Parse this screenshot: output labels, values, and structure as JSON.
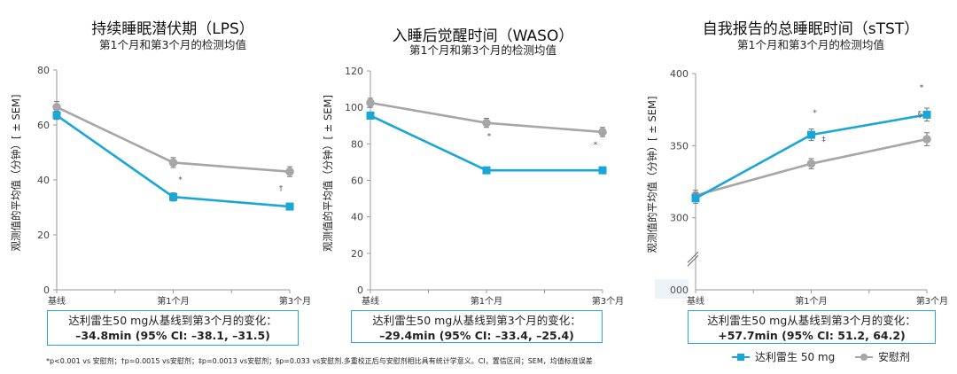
{
  "chart_data": [
    {
      "type": "line",
      "title": "持续睡眠潜伏期（LPS）",
      "subtitle": "第1个月和第3个月的检测均值",
      "ylabel": "观测值的平均值（分钟）[ ± SEM]",
      "categories": [
        "基线",
        "第1个月",
        "第3个月"
      ],
      "ylim": [
        0,
        80
      ],
      "yticks": [
        0,
        20,
        40,
        60,
        80
      ],
      "ytick_labels": [
        "0",
        "20",
        "40",
        "60",
        "80"
      ],
      "series": [
        {
          "name": "达利雷生 50 mg",
          "values": [
            63.5,
            33.8,
            30.3
          ],
          "sem": [
            1.5,
            1.5,
            1.2
          ]
        },
        {
          "name": "安慰剂",
          "values": [
            66.5,
            46.3,
            43.0
          ],
          "sem": [
            2.0,
            1.8,
            1.8
          ]
        }
      ],
      "annotations": [
        {
          "text": "*",
          "category": 1
        },
        {
          "text": "†",
          "category": 2
        }
      ],
      "change_box": {
        "line1": "达利雷生50 mg从基线到第3个月的变化：",
        "line2": "–34.8min (95% CI: –38.1, –31.5)"
      }
    },
    {
      "type": "line",
      "title": "入睡后觉醒时间（WASO）",
      "subtitle": "第1个月和第3个月的检测均值",
      "ylabel": "观测值的平均值（分钟）[ ± SEM]",
      "categories": [
        "基线",
        "第1个月",
        "第3个月"
      ],
      "ylim": [
        0,
        120
      ],
      "yticks": [
        0,
        20,
        40,
        60,
        80,
        100,
        120
      ],
      "ytick_labels": [
        "0",
        "20",
        "40",
        "60",
        "80",
        "100",
        "120"
      ],
      "series": [
        {
          "name": "达利雷生 50 mg",
          "values": [
            95.5,
            65.5,
            65.5
          ],
          "sem": [
            2.0,
            1.8,
            1.8
          ]
        },
        {
          "name": "安慰剂",
          "values": [
            102.5,
            91.5,
            86.5
          ],
          "sem": [
            2.5,
            2.5,
            2.5
          ]
        }
      ],
      "annotations": [
        {
          "text": "*",
          "category": 1
        },
        {
          "text": "*",
          "category": 2
        }
      ],
      "change_box": {
        "line1": "达利雷生50 mg从基线到第3个月的变化：",
        "line2": "–29.4min (95% CI: –33.4, –25.4)"
      }
    },
    {
      "type": "line",
      "title": "自我报告的总睡眠时间（sTST）",
      "subtitle": "第1个月和第3个月的检测均值",
      "ylabel": "观测值的平均值（分钟）[ ± SEM]",
      "categories": [
        "基线",
        "第1个月",
        "第3个月"
      ],
      "ylim": [
        250,
        400
      ],
      "yticks": [
        300,
        350,
        400
      ],
      "ytick_labels": [
        "300",
        "350",
        "400"
      ],
      "axis_origin_label": "000",
      "axis_break": true,
      "series": [
        {
          "name": "达利雷生 50 mg",
          "values": [
            313.5,
            357.5,
            371.5
          ],
          "sem": [
            3.5,
            4.0,
            4.5
          ]
        },
        {
          "name": "安慰剂",
          "values": [
            315.5,
            337.5,
            354.5
          ],
          "sem": [
            3.5,
            3.5,
            4.5
          ]
        }
      ],
      "annotations": [
        {
          "text": "*",
          "category": 1
        },
        {
          "text": "‡",
          "category": 1
        },
        {
          "text": "*",
          "category": 2
        },
        {
          "text": "§",
          "category": 2
        }
      ],
      "change_box": {
        "line1": "达利雷生50 mg从基线到第3个月的变化：",
        "line2": "+57.7min (95% CI: 51.2, 64.2)"
      }
    }
  ],
  "colors": {
    "drug": "#1aa6d6",
    "placebo": "#a6a6a6",
    "axis": "#999999"
  },
  "footnote": "*p<0.001 vs 安慰剂；†p=0.0015 vs安慰剂；‡p=0.0013 vs安慰剂；§p=0.033 vs安慰剂.多重校正后与安慰剂相比具有统计学意义。CI，置信区间；SEM，均值标准误差",
  "legend": [
    {
      "label": "达利雷生 50 mg",
      "marker": "square"
    },
    {
      "label": "安慰剂",
      "marker": "circle"
    }
  ]
}
